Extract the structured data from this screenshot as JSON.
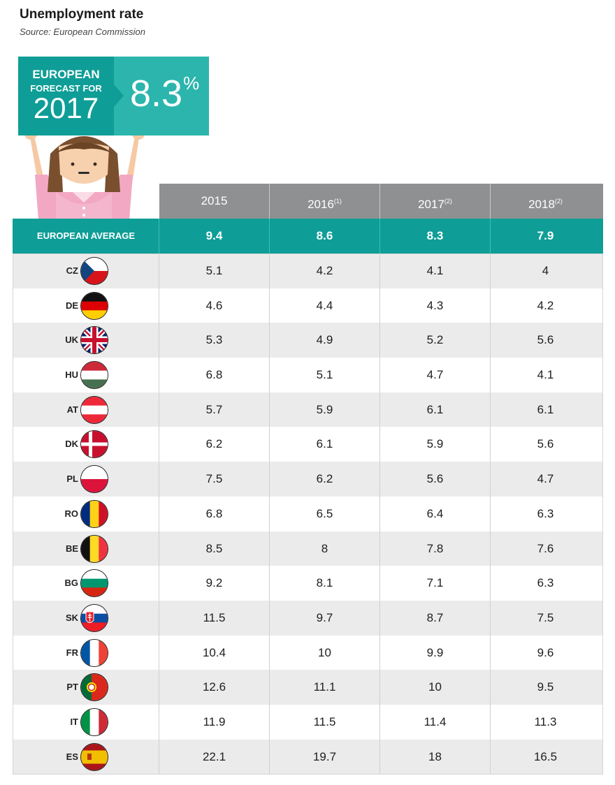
{
  "title": "Unemployment rate",
  "source": "Source: European Commission",
  "banner": {
    "line1": "EUROPEAN",
    "line2": "FORECAST FOR",
    "year": "2017",
    "value": "8.3",
    "unit": "%"
  },
  "chart_data": {
    "type": "table",
    "columns": [
      {
        "year": "2015",
        "note": ""
      },
      {
        "year": "2016",
        "note": "(1)"
      },
      {
        "year": "2017",
        "note": "(2)"
      },
      {
        "year": "2018",
        "note": "(2)"
      }
    ],
    "average": {
      "label": "EUROPEAN AVERAGE",
      "values": [
        "9.4",
        "8.6",
        "8.3",
        "7.9"
      ]
    },
    "rows": [
      {
        "code": "CZ",
        "flag": "czech-flag-icon",
        "values": [
          "5.1",
          "4.2",
          "4.1",
          "4"
        ]
      },
      {
        "code": "DE",
        "flag": "germany-flag-icon",
        "values": [
          "4.6",
          "4.4",
          "4.3",
          "4.2"
        ]
      },
      {
        "code": "UK",
        "flag": "uk-flag-icon",
        "values": [
          "5.3",
          "4.9",
          "5.2",
          "5.6"
        ]
      },
      {
        "code": "HU",
        "flag": "hungary-flag-icon",
        "values": [
          "6.8",
          "5.1",
          "4.7",
          "4.1"
        ]
      },
      {
        "code": "AT",
        "flag": "austria-flag-icon",
        "values": [
          "5.7",
          "5.9",
          "6.1",
          "6.1"
        ]
      },
      {
        "code": "DK",
        "flag": "denmark-flag-icon",
        "values": [
          "6.2",
          "6.1",
          "5.9",
          "5.6"
        ]
      },
      {
        "code": "PL",
        "flag": "poland-flag-icon",
        "values": [
          "7.5",
          "6.2",
          "5.6",
          "4.7"
        ]
      },
      {
        "code": "RO",
        "flag": "romania-flag-icon",
        "values": [
          "6.8",
          "6.5",
          "6.4",
          "6.3"
        ]
      },
      {
        "code": "BE",
        "flag": "belgium-flag-icon",
        "values": [
          "8.5",
          "8",
          "7.8",
          "7.6"
        ]
      },
      {
        "code": "BG",
        "flag": "bulgaria-flag-icon",
        "values": [
          "9.2",
          "8.1",
          "7.1",
          "6.3"
        ]
      },
      {
        "code": "SK",
        "flag": "slovakia-flag-icon",
        "values": [
          "11.5",
          "9.7",
          "8.7",
          "7.5"
        ]
      },
      {
        "code": "FR",
        "flag": "france-flag-icon",
        "values": [
          "10.4",
          "10",
          "9.9",
          "9.6"
        ]
      },
      {
        "code": "PT",
        "flag": "portugal-flag-icon",
        "values": [
          "12.6",
          "11.1",
          "10",
          "9.5"
        ]
      },
      {
        "code": "IT",
        "flag": "italy-flag-icon",
        "values": [
          "11.9",
          "11.5",
          "11.4",
          "11.3"
        ]
      },
      {
        "code": "ES",
        "flag": "spain-flag-icon",
        "values": [
          "22.1",
          "19.7",
          "18",
          "16.5"
        ]
      }
    ]
  },
  "colors": {
    "teal": "#0e9e97",
    "teal_light": "#2bb5ad",
    "header_gray": "#8f9091",
    "row_stripe": "#ebebeb"
  }
}
